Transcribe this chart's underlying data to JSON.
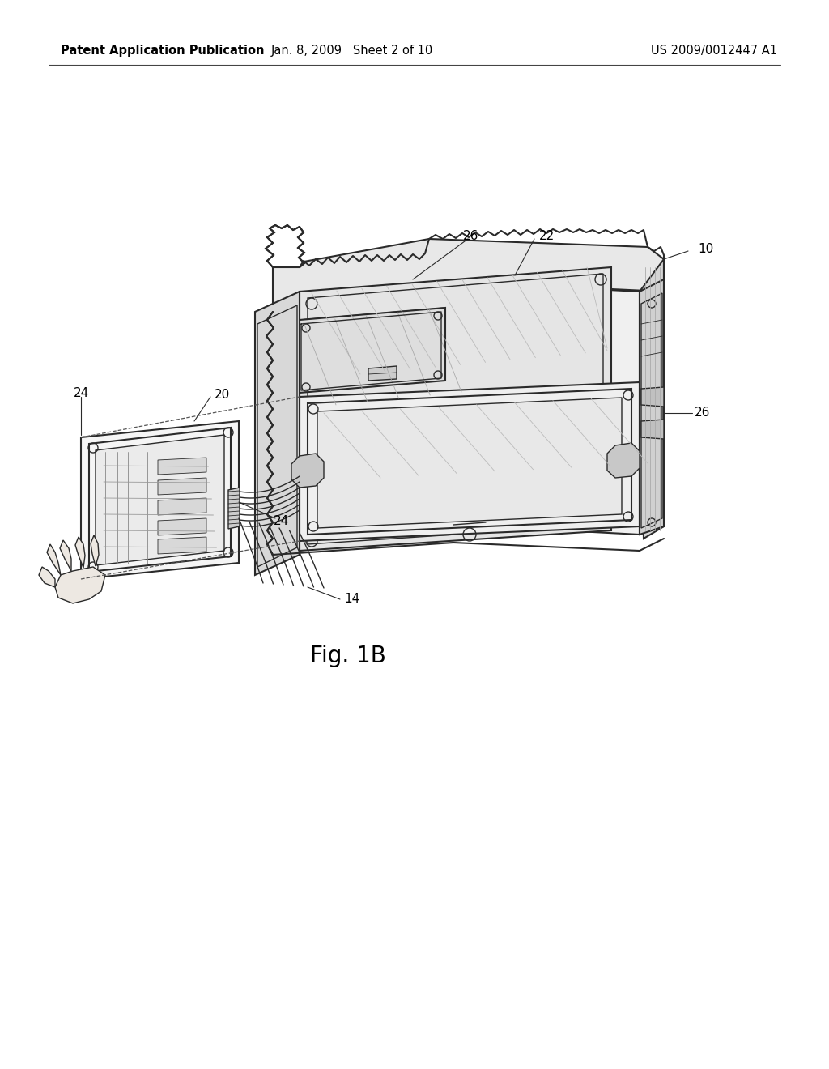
{
  "background_color": "#ffffff",
  "header_left": "Patent Application Publication",
  "header_center": "Jan. 8, 2009   Sheet 2 of 10",
  "header_right": "US 2009/0012447 A1",
  "figure_label": "Fig. 1B",
  "line_color": "#2a2a2a",
  "text_color": "#000000",
  "header_fontsize": 10.5,
  "label_fontsize": 11,
  "fig_label_fontsize": 20,
  "page_width": 10.24,
  "page_height": 13.2,
  "dpi": 100
}
